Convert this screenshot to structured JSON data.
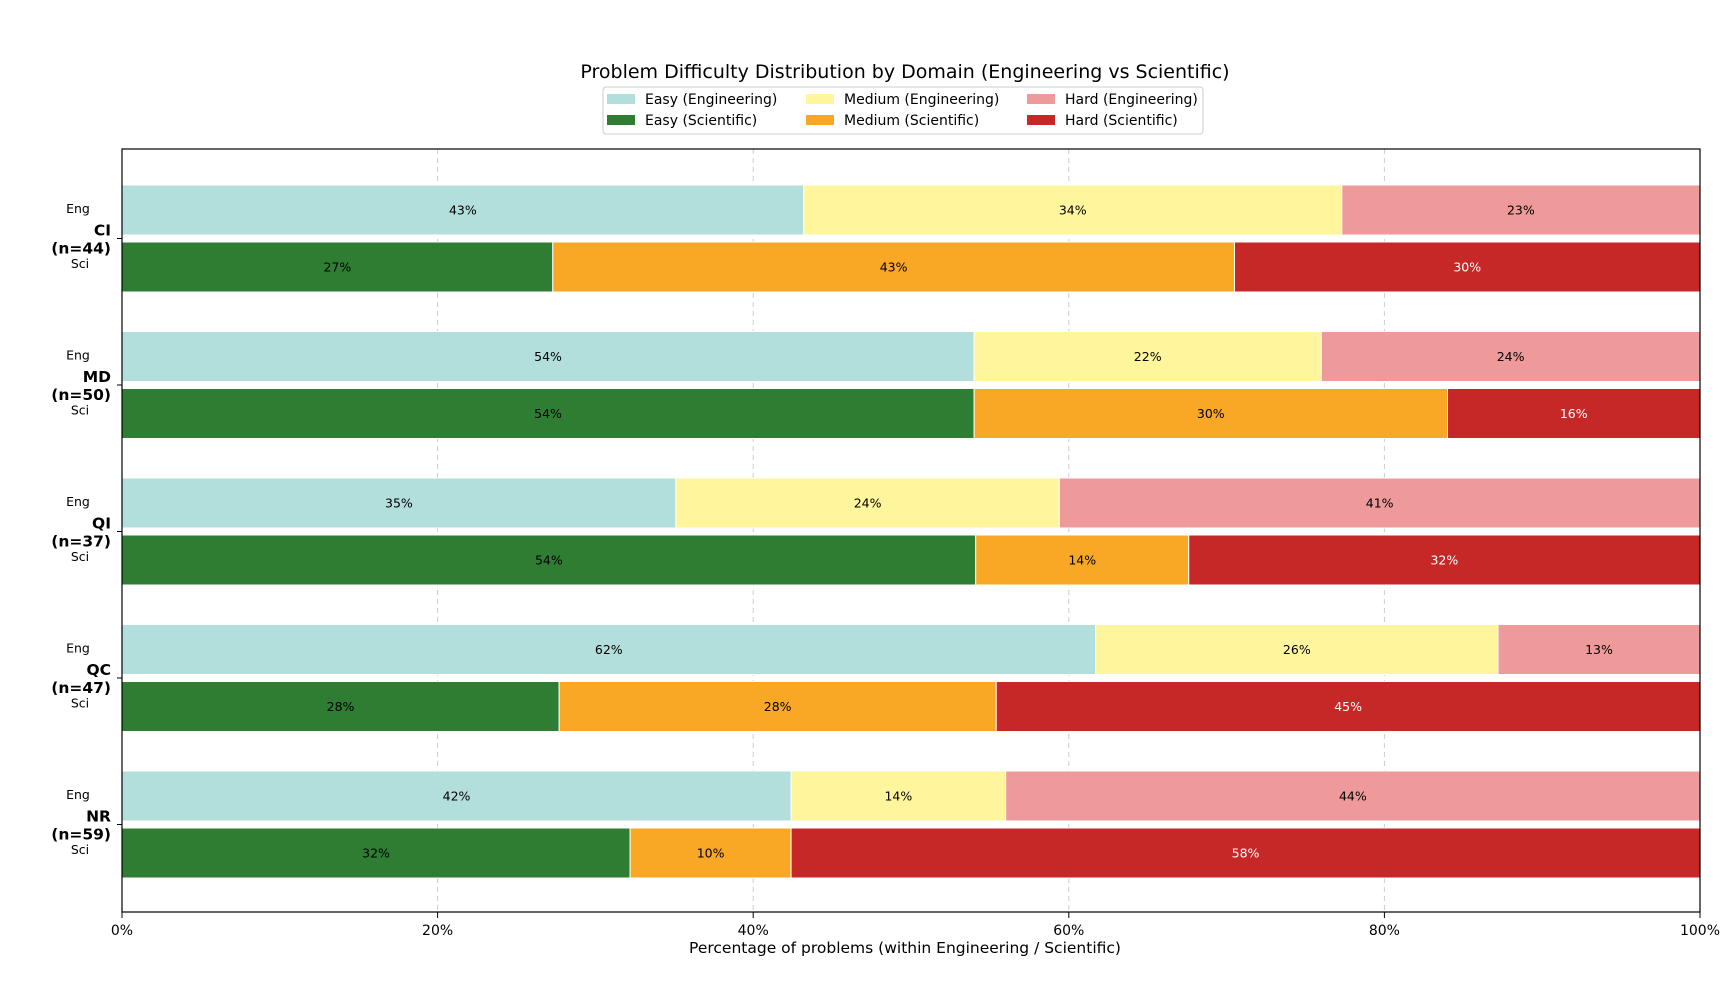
{
  "chart_data": {
    "type": "bar",
    "orientation": "horizontal",
    "stacked": true,
    "title": "Problem Difficulty Distribution by Domain (Engineering vs Scientific)",
    "xlabel": "Percentage of problems (within Engineering / Scientific)",
    "ylabel": "",
    "xlim": [
      0,
      100
    ],
    "xticks": [
      0,
      20,
      40,
      60,
      80,
      100
    ],
    "xtick_labels": [
      "0%",
      "20%",
      "40%",
      "60%",
      "80%",
      "100%"
    ],
    "grid": "x-dashed",
    "legend_position": "top-center",
    "categories": [
      "CI\n(n=44)",
      "MD\n(n=50)",
      "QI\n(n=37)",
      "QC\n(n=47)",
      "NR\n(n=59)"
    ],
    "group_labels": [
      "Eng",
      "Sci"
    ],
    "series": [
      {
        "name": "Easy (Engineering)",
        "group": "Eng",
        "color": "#b2dfdb",
        "text_color": "#000000",
        "values": [
          43.2,
          54,
          35.1,
          61.7,
          42.4
        ],
        "labels": [
          "43%",
          "54%",
          "35%",
          "62%",
          "42%"
        ]
      },
      {
        "name": "Medium (Engineering)",
        "group": "Eng",
        "color": "#fff59d",
        "text_color": "#000000",
        "values": [
          34.1,
          22,
          24.3,
          25.5,
          13.6
        ],
        "labels": [
          "34%",
          "22%",
          "24%",
          "26%",
          "14%"
        ]
      },
      {
        "name": "Hard (Engineering)",
        "group": "Eng",
        "color": "#ef9a9a",
        "text_color": "#000000",
        "values": [
          22.7,
          24,
          40.6,
          12.8,
          44
        ],
        "labels": [
          "23%",
          "24%",
          "41%",
          "13%",
          "44%"
        ]
      },
      {
        "name": "Easy (Scientific)",
        "group": "Sci",
        "color": "#2e7d32",
        "text_color": "#000000",
        "values": [
          27.3,
          54,
          54.1,
          27.7,
          32.2
        ],
        "labels": [
          "27%",
          "54%",
          "54%",
          "28%",
          "32%"
        ]
      },
      {
        "name": "Medium (Scientific)",
        "group": "Sci",
        "color": "#f9a825",
        "text_color": "#000000",
        "values": [
          43.2,
          30,
          13.5,
          27.7,
          10.2
        ],
        "labels": [
          "43%",
          "30%",
          "14%",
          "28%",
          "10%"
        ]
      },
      {
        "name": "Hard (Scientific)",
        "group": "Sci",
        "color": "#c62828",
        "text_color": "#ffffff",
        "values": [
          29.5,
          16,
          32.4,
          44.6,
          57.6
        ],
        "labels": [
          "30%",
          "16%",
          "32%",
          "45%",
          "58%"
        ]
      }
    ],
    "legend_order": [
      "Easy (Engineering)",
      "Easy (Scientific)",
      "Medium (Engineering)",
      "Medium (Scientific)",
      "Hard (Engineering)",
      "Hard (Scientific)"
    ]
  }
}
